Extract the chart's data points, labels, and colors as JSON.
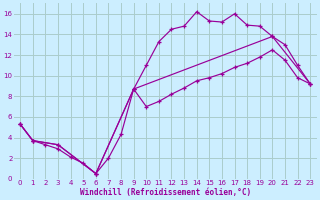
{
  "xlabel": "Windchill (Refroidissement éolien,°C)",
  "bg_color": "#cceeff",
  "grid_color": "#aacccc",
  "line_color": "#990099",
  "xlim": [
    -0.5,
    23.5
  ],
  "ylim": [
    0,
    17
  ],
  "xticks": [
    0,
    1,
    2,
    3,
    4,
    5,
    6,
    7,
    8,
    9,
    10,
    11,
    12,
    13,
    14,
    15,
    16,
    17,
    18,
    19,
    20,
    21,
    22,
    23
  ],
  "yticks": [
    0,
    2,
    4,
    6,
    8,
    10,
    12,
    14,
    16
  ],
  "line1_x": [
    0,
    1,
    2,
    3,
    4,
    5,
    6,
    7,
    8,
    9,
    10,
    11,
    12,
    13,
    14,
    15,
    16,
    17,
    18,
    19,
    20,
    21,
    22,
    23
  ],
  "line1_y": [
    5.3,
    3.7,
    3.3,
    2.9,
    2.1,
    1.5,
    0.5,
    2.0,
    4.3,
    8.7,
    11.0,
    13.3,
    14.5,
    14.8,
    16.2,
    15.3,
    15.2,
    16.0,
    14.9,
    14.8,
    13.8,
    13.0,
    11.0,
    9.2
  ],
  "line2_x": [
    0,
    1,
    3,
    6,
    9,
    20,
    23
  ],
  "line2_y": [
    5.3,
    3.7,
    3.3,
    0.5,
    8.7,
    13.8,
    9.2
  ],
  "line3_x": [
    0,
    1,
    3,
    6,
    9,
    10,
    11,
    12,
    13,
    14,
    15,
    16,
    17,
    18,
    19,
    20,
    21,
    22,
    23
  ],
  "line3_y": [
    5.3,
    3.7,
    3.3,
    0.5,
    8.7,
    7.0,
    7.5,
    8.2,
    8.8,
    9.5,
    9.8,
    10.2,
    10.8,
    11.2,
    11.8,
    12.5,
    11.5,
    9.8,
    9.2
  ]
}
